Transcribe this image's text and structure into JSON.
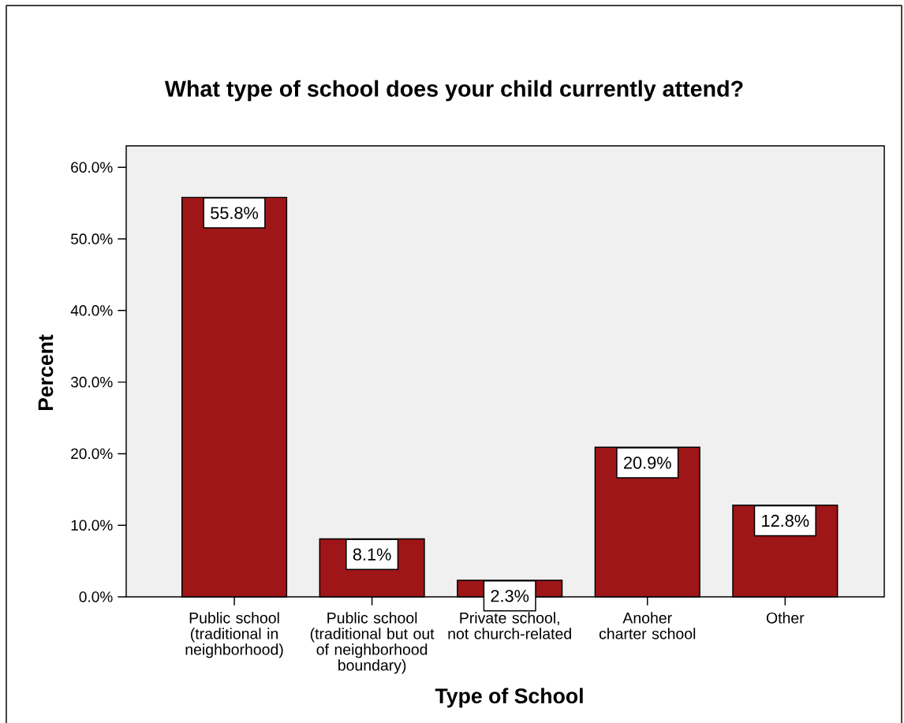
{
  "chart_data": {
    "type": "bar",
    "title": "What type of school does your child currently attend?",
    "xlabel": "Type of School",
    "ylabel": "Percent",
    "categories": [
      "Public school (traditional in neighborhood)",
      "Public school (traditional but out of neighborhood boundary)",
      "Private school, not church-related",
      "Anoher charter school",
      "Other"
    ],
    "values": [
      55.8,
      8.1,
      2.3,
      20.9,
      12.8
    ],
    "value_labels": [
      "55.8%",
      "8.1%",
      "2.3%",
      "20.9%",
      "12.8%"
    ],
    "color": "#9e1618",
    "ylim": [
      0,
      63
    ],
    "yticks": [
      {
        "value": 0,
        "label": "0.0%"
      },
      {
        "value": 10,
        "label": "10.0%"
      },
      {
        "value": 20,
        "label": "20.0%"
      },
      {
        "value": 30,
        "label": "30.0%"
      },
      {
        "value": 40,
        "label": "40.0%"
      },
      {
        "value": 50,
        "label": "50.0%"
      },
      {
        "value": 60,
        "label": "60.0%"
      }
    ]
  }
}
